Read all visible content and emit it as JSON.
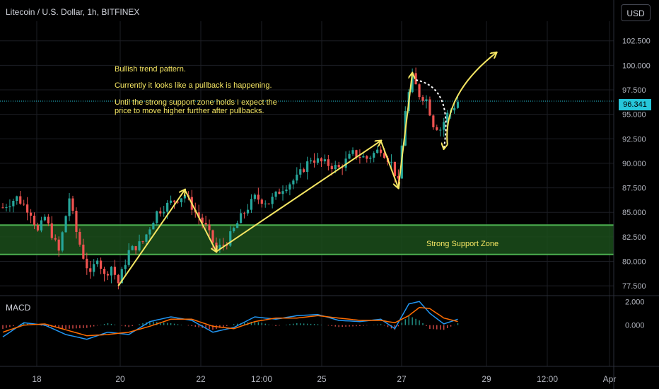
{
  "header": {
    "symbol_line": "Litecoin / U.S. Dollar, 1h, BITFINEX",
    "currency_button": "USD"
  },
  "annotations": {
    "line1": "Bullish trend pattern.",
    "line2": "Currently it looks like a pullback is happening.",
    "line3": "Until the strong support zone holds I expect the\nprice to move higher further after pullbacks.",
    "zone_label": "Strong Support Zone"
  },
  "indicator": {
    "label": "MACD"
  },
  "last_price_label": "96.341",
  "colors": {
    "background": "#000000",
    "grid": "#1c1e24",
    "up": "#26a69a",
    "down": "#ef5350",
    "zone_fill": "#1b4d1b",
    "zone_border": "#4caf50",
    "annotation": "#f5e663",
    "macd_line": "#2196f3",
    "signal_line": "#ff6d00",
    "price_line": "#26c6da"
  },
  "chart_data": [
    {
      "type": "candlestick",
      "title": "Litecoin / U.S. Dollar, 1h, BITFINEX",
      "ylim": [
        76.5,
        104.5
      ],
      "y_ticks": [
        "77.500",
        "80.000",
        "82.500",
        "85.000",
        "87.500",
        "90.000",
        "92.500",
        "95.000",
        "97.500",
        "100.000",
        "102.500"
      ],
      "x_ticks": [
        "18",
        "20",
        "22",
        "12:00",
        "25",
        "27",
        "29",
        "12:00",
        "Apr"
      ],
      "last_price": 96.341,
      "support_zone": [
        80.7,
        83.7
      ],
      "price_path": [
        {
          "i": 0,
          "p": 85.5
        },
        {
          "i": 4,
          "p": 86.5
        },
        {
          "i": 8,
          "p": 85.0
        },
        {
          "i": 10,
          "p": 83.0
        },
        {
          "i": 12,
          "p": 84.5
        },
        {
          "i": 16,
          "p": 81.0
        },
        {
          "i": 19,
          "p": 86.5
        },
        {
          "i": 21,
          "p": 83.0
        },
        {
          "i": 23,
          "p": 80.5
        },
        {
          "i": 25,
          "p": 78.5
        },
        {
          "i": 27,
          "p": 80.5
        },
        {
          "i": 29,
          "p": 78.5
        },
        {
          "i": 31,
          "p": 79.5
        },
        {
          "i": 33,
          "p": 77.8
        },
        {
          "i": 36,
          "p": 81.0
        },
        {
          "i": 40,
          "p": 82.0
        },
        {
          "i": 44,
          "p": 85.0
        },
        {
          "i": 48,
          "p": 86.0
        },
        {
          "i": 52,
          "p": 86.8
        },
        {
          "i": 55,
          "p": 85.0
        },
        {
          "i": 58,
          "p": 83.5
        },
        {
          "i": 61,
          "p": 81.2
        },
        {
          "i": 64,
          "p": 82.0
        },
        {
          "i": 68,
          "p": 84.5
        },
        {
          "i": 72,
          "p": 86.5
        },
        {
          "i": 76,
          "p": 86.0
        },
        {
          "i": 80,
          "p": 87.5
        },
        {
          "i": 84,
          "p": 88.5
        },
        {
          "i": 88,
          "p": 90.5
        },
        {
          "i": 92,
          "p": 90.0
        },
        {
          "i": 96,
          "p": 89.5
        },
        {
          "i": 100,
          "p": 91.0
        },
        {
          "i": 104,
          "p": 90.5
        },
        {
          "i": 108,
          "p": 91.5
        },
        {
          "i": 111,
          "p": 90.0
        },
        {
          "i": 113,
          "p": 88.0
        },
        {
          "i": 115,
          "p": 95.5
        },
        {
          "i": 117,
          "p": 98.8
        },
        {
          "i": 119,
          "p": 97.0
        },
        {
          "i": 121,
          "p": 96.5
        },
        {
          "i": 123,
          "p": 94.0
        },
        {
          "i": 125,
          "p": 93.5
        },
        {
          "i": 127,
          "p": 95.0
        },
        {
          "i": 130,
          "p": 96.3
        }
      ],
      "macd": {
        "ylim": [
          -3.5,
          2.5
        ],
        "y_ticks": [
          "0.000",
          "2.000"
        ],
        "macd_path": [
          {
            "i": 0,
            "v": -1.0
          },
          {
            "i": 6,
            "v": 0.2
          },
          {
            "i": 12,
            "v": 0.0
          },
          {
            "i": 18,
            "v": -0.8
          },
          {
            "i": 24,
            "v": -1.2
          },
          {
            "i": 30,
            "v": -0.6
          },
          {
            "i": 36,
            "v": -0.8
          },
          {
            "i": 42,
            "v": 0.3
          },
          {
            "i": 48,
            "v": 0.7
          },
          {
            "i": 54,
            "v": 0.4
          },
          {
            "i": 60,
            "v": -0.6
          },
          {
            "i": 66,
            "v": -0.2
          },
          {
            "i": 72,
            "v": 0.7
          },
          {
            "i": 78,
            "v": 0.5
          },
          {
            "i": 84,
            "v": 0.8
          },
          {
            "i": 90,
            "v": 0.9
          },
          {
            "i": 96,
            "v": 0.4
          },
          {
            "i": 102,
            "v": 0.3
          },
          {
            "i": 108,
            "v": 0.5
          },
          {
            "i": 112,
            "v": -0.3
          },
          {
            "i": 116,
            "v": 1.8
          },
          {
            "i": 119,
            "v": 2.0
          },
          {
            "i": 122,
            "v": 1.0
          },
          {
            "i": 126,
            "v": 0.1
          },
          {
            "i": 130,
            "v": 0.5
          }
        ],
        "signal_path": [
          {
            "i": 0,
            "v": -0.6
          },
          {
            "i": 6,
            "v": 0.0
          },
          {
            "i": 12,
            "v": 0.1
          },
          {
            "i": 18,
            "v": -0.4
          },
          {
            "i": 24,
            "v": -0.9
          },
          {
            "i": 30,
            "v": -0.8
          },
          {
            "i": 36,
            "v": -0.6
          },
          {
            "i": 42,
            "v": -0.1
          },
          {
            "i": 48,
            "v": 0.5
          },
          {
            "i": 54,
            "v": 0.5
          },
          {
            "i": 60,
            "v": -0.1
          },
          {
            "i": 66,
            "v": -0.3
          },
          {
            "i": 72,
            "v": 0.3
          },
          {
            "i": 78,
            "v": 0.6
          },
          {
            "i": 84,
            "v": 0.6
          },
          {
            "i": 90,
            "v": 0.8
          },
          {
            "i": 96,
            "v": 0.6
          },
          {
            "i": 102,
            "v": 0.4
          },
          {
            "i": 108,
            "v": 0.4
          },
          {
            "i": 112,
            "v": 0.2
          },
          {
            "i": 116,
            "v": 0.8
          },
          {
            "i": 119,
            "v": 1.5
          },
          {
            "i": 122,
            "v": 1.4
          },
          {
            "i": 126,
            "v": 0.6
          },
          {
            "i": 130,
            "v": 0.3
          }
        ]
      },
      "trend_arrows": [
        {
          "from": [
            33,
            77.5
          ],
          "to": [
            52,
            87.3
          ]
        },
        {
          "from": [
            52,
            87.3
          ],
          "to": [
            61,
            81.0
          ]
        },
        {
          "from": [
            61,
            81.0
          ],
          "to": [
            108,
            92.3
          ]
        },
        {
          "from": [
            108,
            92.3
          ],
          "to": [
            113,
            87.5
          ]
        },
        {
          "from": [
            113,
            87.5
          ],
          "to": [
            117,
            99.2
          ]
        },
        {
          "from": [
            127,
            92.0
          ],
          "to": [
            141,
            101.3
          ]
        }
      ],
      "pullback_curve": {
        "from": [
          118,
          98.5
        ],
        "to": [
          126,
          91.5
        ]
      }
    }
  ]
}
